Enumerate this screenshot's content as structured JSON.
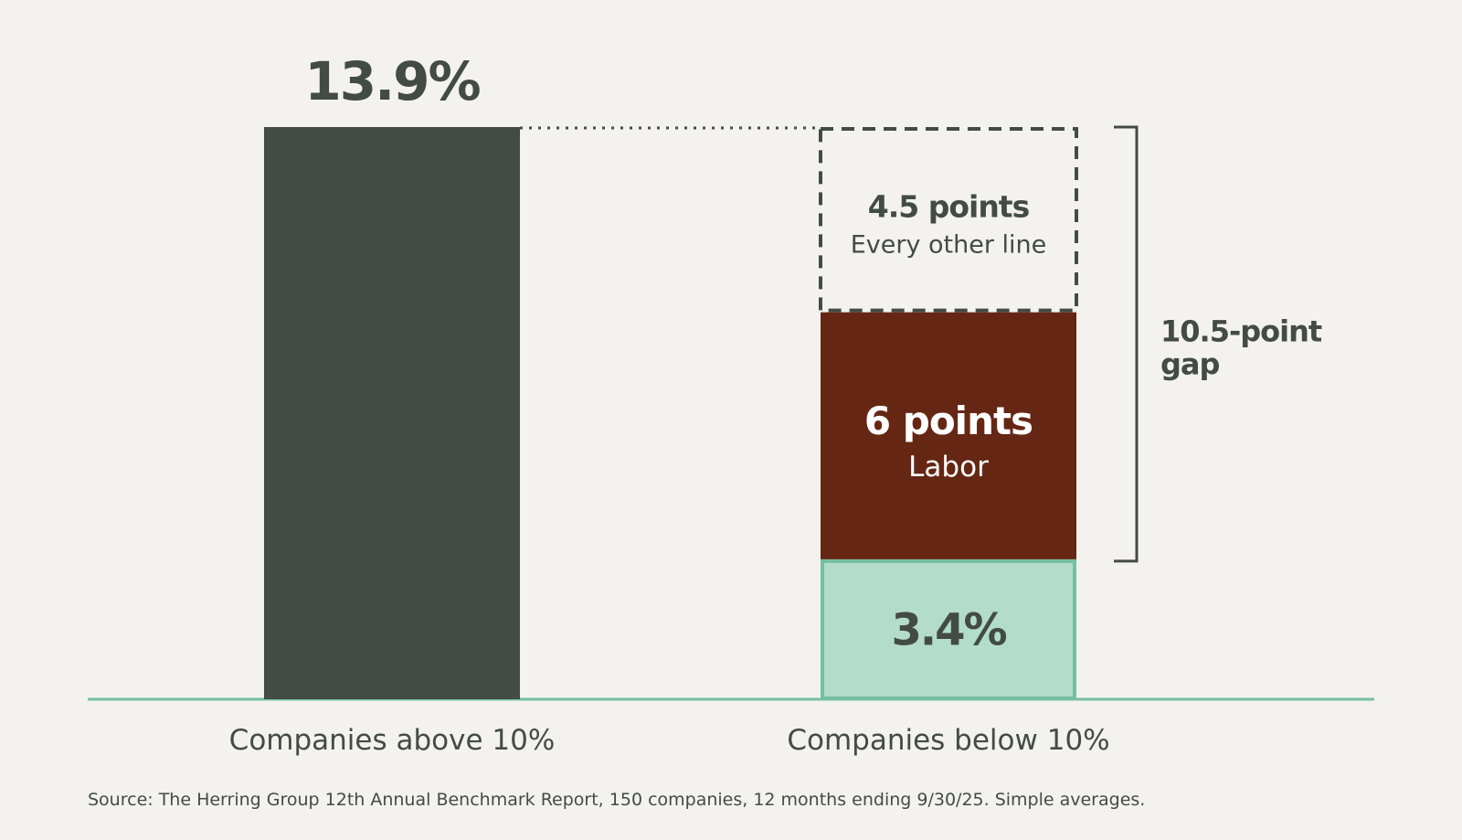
{
  "chart_data": {
    "type": "bar",
    "categories": [
      "Companies above 10%",
      "Companies below 10%"
    ],
    "above": {
      "value": 13.9,
      "label": "13.9%"
    },
    "below": {
      "value": 3.4,
      "label": "3.4%",
      "segments": [
        {
          "value": 6,
          "title": "6 points",
          "subtitle": "Labor"
        },
        {
          "value": 4.5,
          "title": "4.5 points",
          "subtitle": "Every other line"
        }
      ]
    },
    "gap": {
      "value": 10.5,
      "label_line1": "10.5-point",
      "label_line2": "gap"
    },
    "ylim": [
      0,
      13.9
    ],
    "colors": {
      "above_bar": "#434b47",
      "labor": "#652714",
      "below_fill": "#b3dccb",
      "below_stroke": "#75bfa0",
      "baseline": "#75bfa0",
      "text_dark": "#434b47",
      "dashed": "#434b47"
    }
  },
  "source": "Source: The Herring Group 12th Annual Benchmark Report, 150 companies, 12 months ending 9/30/25. Simple averages."
}
